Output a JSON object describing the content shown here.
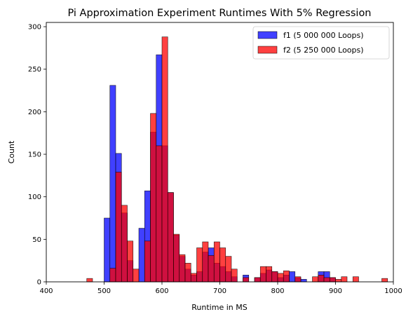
{
  "chart_data": {
    "type": "histogram",
    "title": "Pi Approximation Experiment Runtimes With 5% Regression",
    "xlabel": "Runtime in MS",
    "ylabel": "Count",
    "xlim": [
      400,
      1000
    ],
    "ylim": [
      0,
      305
    ],
    "xticks": [
      400,
      500,
      600,
      700,
      800,
      900,
      1000
    ],
    "yticks": [
      0,
      50,
      100,
      150,
      200,
      250,
      300
    ],
    "grid": false,
    "legend_position": "top-right",
    "series": [
      {
        "name": "f1 (5 000 000 Loops)",
        "color": "#0000ff",
        "bin_width": 10,
        "bins": [
          [
            500,
            75
          ],
          [
            510,
            231
          ],
          [
            520,
            151
          ],
          [
            530,
            81
          ],
          [
            540,
            25
          ],
          [
            560,
            63
          ],
          [
            570,
            107
          ],
          [
            580,
            176
          ],
          [
            590,
            267
          ],
          [
            600,
            160
          ],
          [
            610,
            105
          ],
          [
            620,
            55
          ],
          [
            630,
            30
          ],
          [
            640,
            15
          ],
          [
            650,
            8
          ],
          [
            660,
            12
          ],
          [
            670,
            35
          ],
          [
            680,
            40
          ],
          [
            690,
            22
          ],
          [
            700,
            18
          ],
          [
            710,
            12
          ],
          [
            720,
            6
          ],
          [
            740,
            8
          ],
          [
            760,
            5
          ],
          [
            770,
            10
          ],
          [
            780,
            14
          ],
          [
            790,
            12
          ],
          [
            800,
            5
          ],
          [
            810,
            8
          ],
          [
            820,
            12
          ],
          [
            830,
            5
          ],
          [
            840,
            3
          ],
          [
            870,
            12
          ],
          [
            880,
            12
          ],
          [
            890,
            5
          ]
        ]
      },
      {
        "name": "f2 (5 250 000 Loops)",
        "color": "#ff0000",
        "bin_width": 10,
        "bins": [
          [
            470,
            4
          ],
          [
            510,
            16
          ],
          [
            520,
            129
          ],
          [
            530,
            90
          ],
          [
            540,
            48
          ],
          [
            550,
            15
          ],
          [
            570,
            48
          ],
          [
            580,
            198
          ],
          [
            590,
            160
          ],
          [
            600,
            288
          ],
          [
            610,
            105
          ],
          [
            620,
            56
          ],
          [
            630,
            32
          ],
          [
            640,
            22
          ],
          [
            650,
            10
          ],
          [
            660,
            40
          ],
          [
            670,
            47
          ],
          [
            680,
            31
          ],
          [
            690,
            47
          ],
          [
            700,
            40
          ],
          [
            710,
            30
          ],
          [
            720,
            15
          ],
          [
            740,
            5
          ],
          [
            760,
            5
          ],
          [
            770,
            18
          ],
          [
            780,
            18
          ],
          [
            790,
            12
          ],
          [
            800,
            10
          ],
          [
            810,
            13
          ],
          [
            830,
            6
          ],
          [
            860,
            6
          ],
          [
            870,
            8
          ],
          [
            880,
            5
          ],
          [
            890,
            5
          ],
          [
            900,
            3
          ],
          [
            910,
            6
          ],
          [
            930,
            6
          ],
          [
            980,
            4
          ]
        ]
      }
    ]
  }
}
